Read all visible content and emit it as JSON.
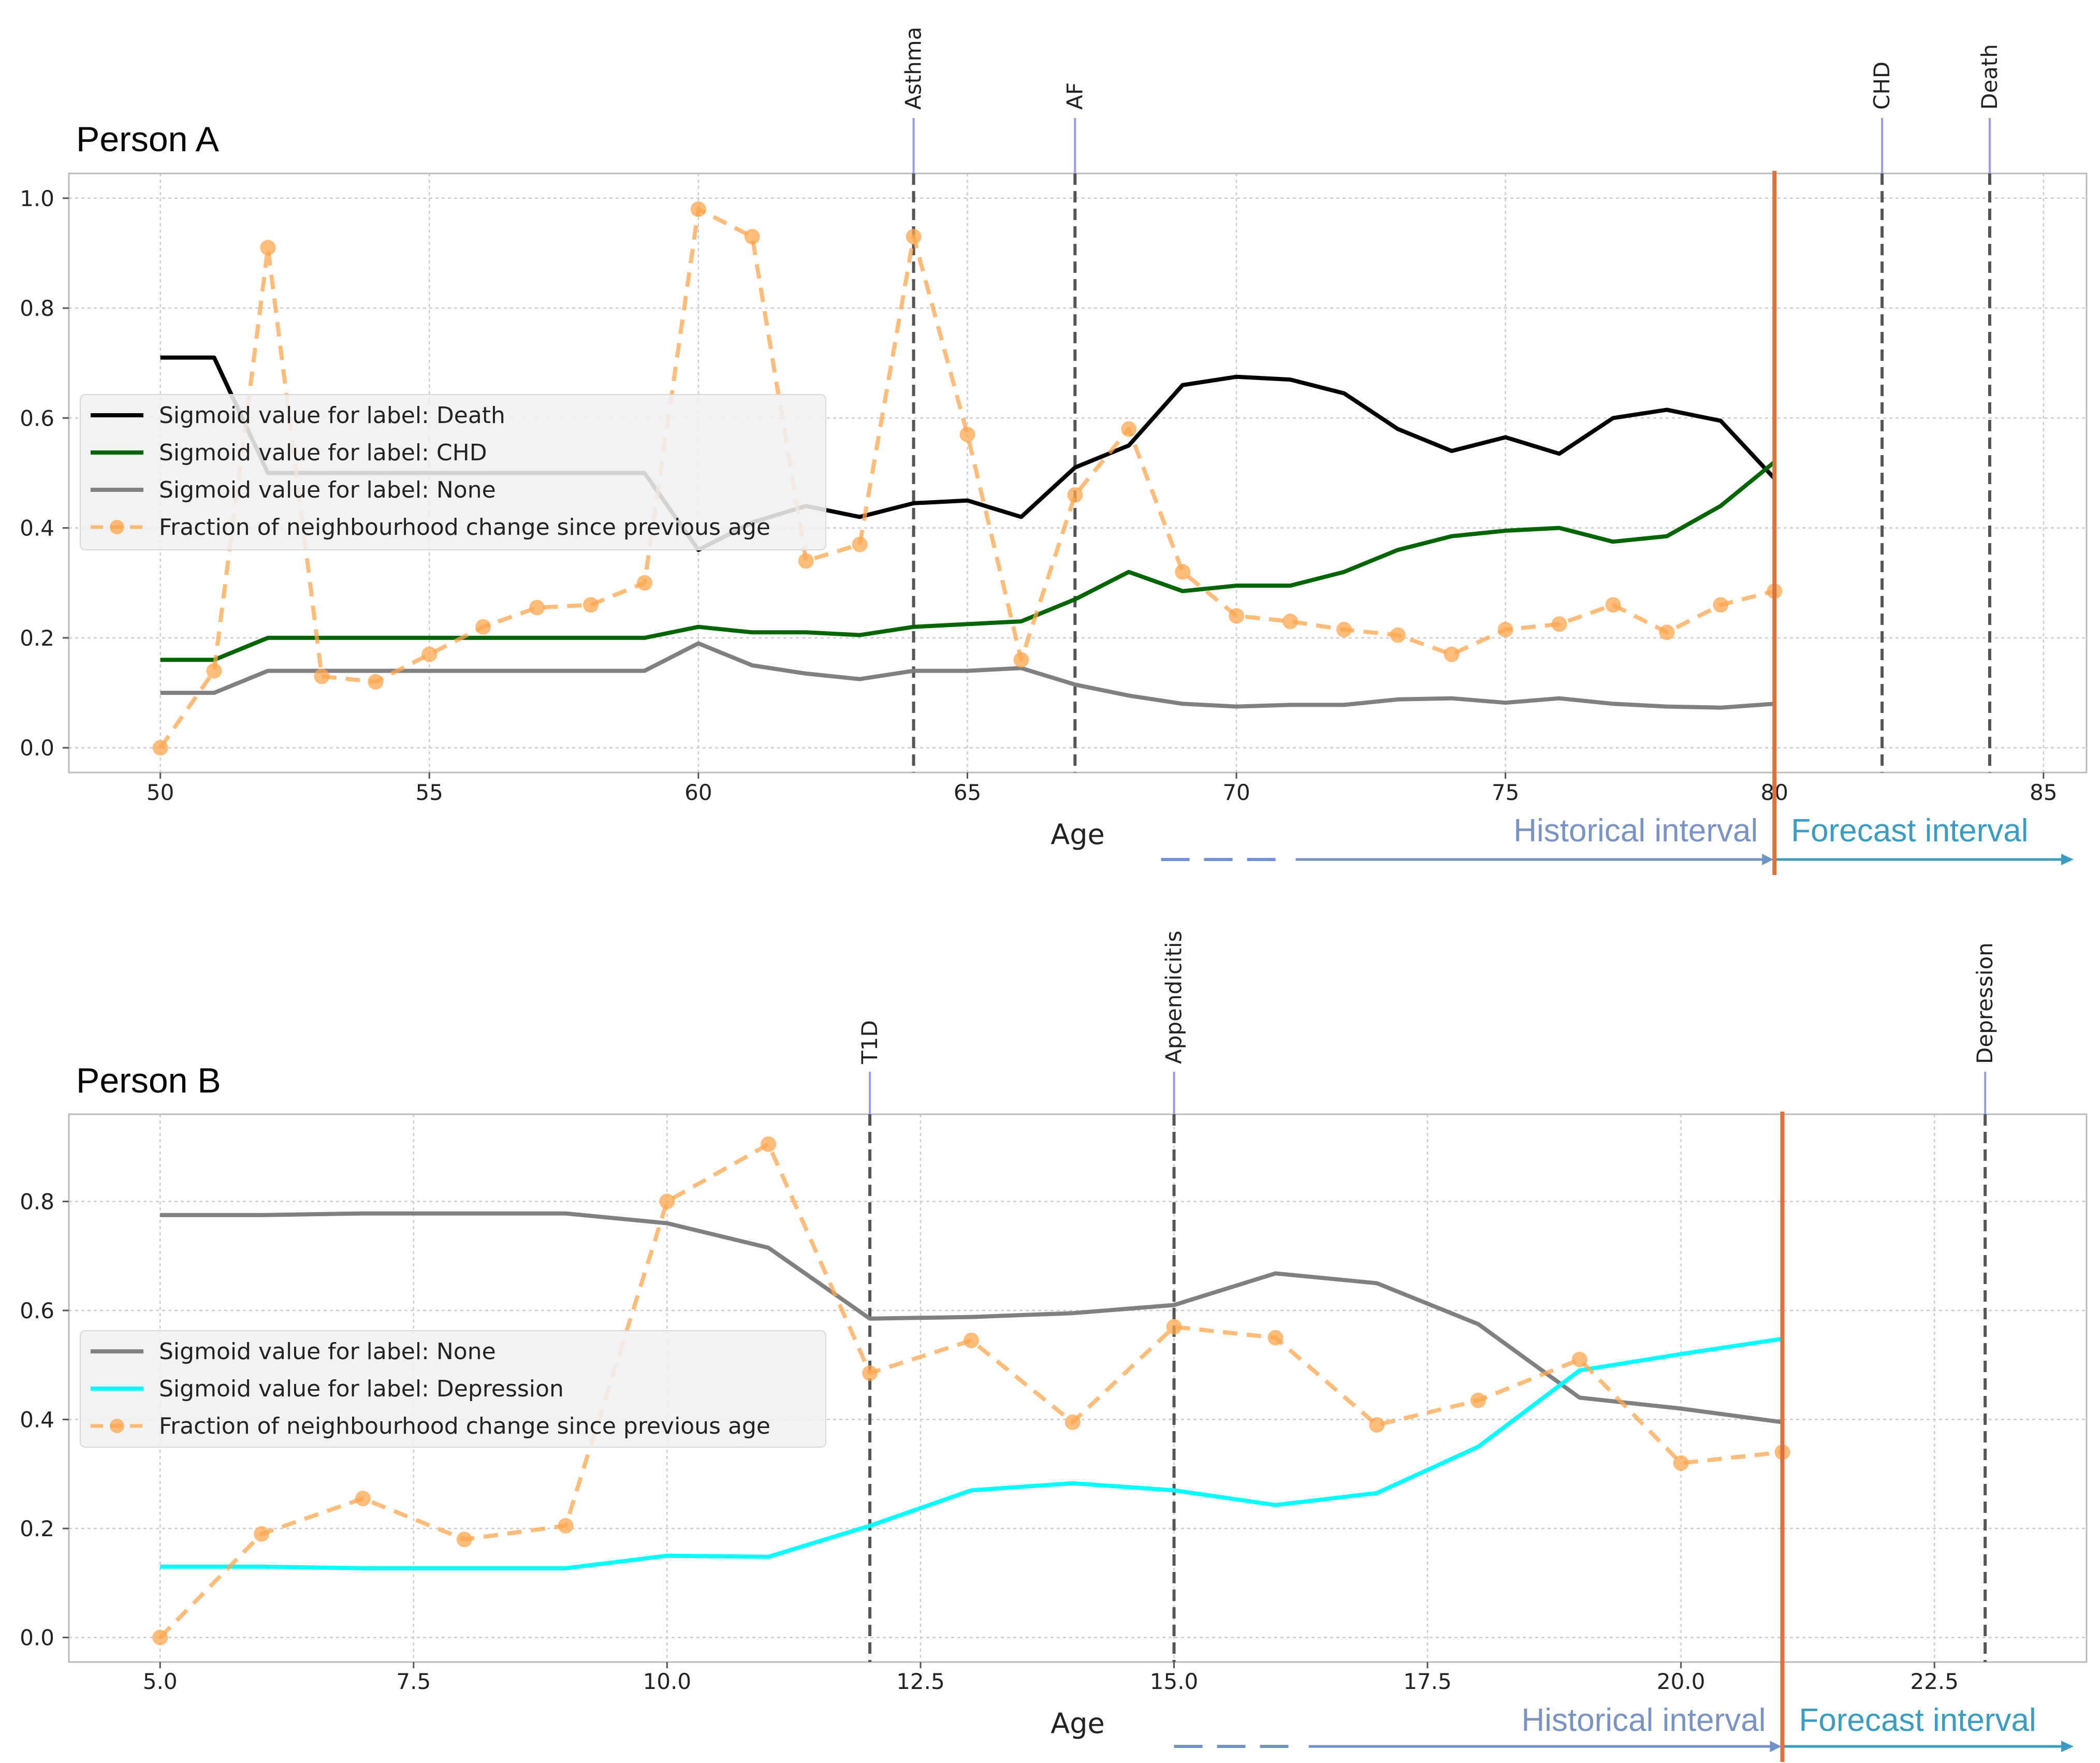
{
  "chart_data": [
    {
      "type": "line",
      "title": "Person A",
      "xlabel": "Age",
      "ylabel": "",
      "xlim": [
        48.3,
        85.8
      ],
      "ylim": [
        -0.045,
        1.045
      ],
      "xticks": [
        50,
        55,
        60,
        65,
        70,
        75,
        80,
        85
      ],
      "xtick_labels": [
        "50",
        "55",
        "60",
        "65",
        "70",
        "75",
        "80",
        "85"
      ],
      "yticks": [
        0.0,
        0.2,
        0.4,
        0.6,
        0.8,
        1.0
      ],
      "ytick_labels": [
        "0.0",
        "0.2",
        "0.4",
        "0.6",
        "0.8",
        "1.0"
      ],
      "grid": true,
      "legend_position": "center-left",
      "series": [
        {
          "name": "Sigmoid value for label: Death",
          "color": "#000000",
          "style": "solid",
          "x": [
            50,
            51,
            52,
            53,
            54,
            55,
            56,
            57,
            58,
            59,
            60,
            61,
            62,
            63,
            64,
            65,
            66,
            67,
            68,
            69,
            70,
            71,
            72,
            73,
            74,
            75,
            76,
            77,
            78,
            79,
            80
          ],
          "y": [
            0.71,
            0.71,
            0.5,
            0.5,
            0.5,
            0.5,
            0.5,
            0.5,
            0.5,
            0.5,
            0.36,
            0.41,
            0.44,
            0.42,
            0.445,
            0.45,
            0.42,
            0.51,
            0.55,
            0.66,
            0.675,
            0.67,
            0.645,
            0.58,
            0.54,
            0.565,
            0.535,
            0.6,
            0.615,
            0.595,
            0.49
          ]
        },
        {
          "name": "Sigmoid value for label: CHD",
          "color": "#006400",
          "style": "solid",
          "x": [
            50,
            51,
            52,
            53,
            54,
            55,
            56,
            57,
            58,
            59,
            60,
            61,
            62,
            63,
            64,
            65,
            66,
            67,
            68,
            69,
            70,
            71,
            72,
            73,
            74,
            75,
            76,
            77,
            78,
            79,
            80
          ],
          "y": [
            0.16,
            0.16,
            0.2,
            0.2,
            0.2,
            0.2,
            0.2,
            0.2,
            0.2,
            0.2,
            0.22,
            0.21,
            0.21,
            0.205,
            0.22,
            0.225,
            0.23,
            0.27,
            0.32,
            0.285,
            0.295,
            0.295,
            0.32,
            0.36,
            0.385,
            0.395,
            0.4,
            0.375,
            0.385,
            0.44,
            0.52
          ]
        },
        {
          "name": "Sigmoid value for label: None",
          "color": "#808080",
          "style": "solid",
          "x": [
            50,
            51,
            52,
            53,
            54,
            55,
            56,
            57,
            58,
            59,
            60,
            61,
            62,
            63,
            64,
            65,
            66,
            67,
            68,
            69,
            70,
            71,
            72,
            73,
            74,
            75,
            76,
            77,
            78,
            79,
            80
          ],
          "y": [
            0.1,
            0.1,
            0.14,
            0.14,
            0.14,
            0.14,
            0.14,
            0.14,
            0.14,
            0.14,
            0.19,
            0.15,
            0.135,
            0.125,
            0.14,
            0.14,
            0.145,
            0.115,
            0.095,
            0.08,
            0.075,
            0.078,
            0.078,
            0.088,
            0.09,
            0.082,
            0.09,
            0.08,
            0.075,
            0.073,
            0.08
          ]
        },
        {
          "name": "Fraction of neighbourhood change since previous age",
          "color": "#FFA64D",
          "style": "dashed-markers",
          "x": [
            50,
            51,
            52,
            53,
            54,
            55,
            56,
            57,
            58,
            59,
            60,
            61,
            62,
            63,
            64,
            65,
            66,
            67,
            68,
            69,
            70,
            71,
            72,
            73,
            74,
            75,
            76,
            77,
            78,
            79,
            80
          ],
          "y": [
            0.0,
            0.14,
            0.91,
            0.13,
            0.12,
            0.17,
            0.22,
            0.255,
            0.26,
            0.3,
            0.98,
            0.93,
            0.34,
            0.37,
            0.93,
            0.57,
            0.16,
            0.46,
            0.58,
            0.32,
            0.24,
            0.23,
            0.215,
            0.205,
            0.17,
            0.215,
            0.225,
            0.26,
            0.21,
            0.26,
            0.285
          ]
        }
      ],
      "events": [
        {
          "label": "Asthma",
          "x": 64
        },
        {
          "label": "AF",
          "x": 67
        },
        {
          "label": "CHD",
          "x": 82
        },
        {
          "label": "Death",
          "x": 84
        }
      ],
      "cutoff_x": 80,
      "interval_dashed_start_x": 68.6,
      "intervals": {
        "historical": "Historical interval",
        "forecast": "Forecast interval"
      }
    },
    {
      "type": "line",
      "title": "Person B",
      "xlabel": "Age",
      "ylabel": "",
      "xlim": [
        4.1,
        24.0
      ],
      "ylim": [
        -0.045,
        0.96
      ],
      "xticks": [
        5.0,
        7.5,
        10.0,
        12.5,
        15.0,
        17.5,
        20.0,
        22.5
      ],
      "xtick_labels": [
        "5.0",
        "7.5",
        "10.0",
        "12.5",
        "15.0",
        "17.5",
        "20.0",
        "22.5"
      ],
      "yticks": [
        0.0,
        0.2,
        0.4,
        0.6,
        0.8
      ],
      "ytick_labels": [
        "0.0",
        "0.2",
        "0.4",
        "0.6",
        "0.8"
      ],
      "grid": true,
      "legend_position": "center-left",
      "series": [
        {
          "name": "Sigmoid value for label: None",
          "color": "#808080",
          "style": "solid",
          "x": [
            5,
            6,
            7,
            8,
            9,
            10,
            11,
            12,
            13,
            14,
            15,
            16,
            17,
            18,
            19,
            20,
            21
          ],
          "y": [
            0.775,
            0.775,
            0.778,
            0.778,
            0.778,
            0.76,
            0.715,
            0.585,
            0.588,
            0.595,
            0.61,
            0.668,
            0.65,
            0.575,
            0.44,
            0.42,
            0.395
          ]
        },
        {
          "name": "Sigmoid value for label: Depression",
          "color": "#00FFFF",
          "style": "solid",
          "x": [
            5,
            6,
            7,
            8,
            9,
            10,
            11,
            12,
            13,
            14,
            15,
            16,
            17,
            18,
            19,
            20,
            21
          ],
          "y": [
            0.13,
            0.13,
            0.127,
            0.127,
            0.127,
            0.15,
            0.148,
            0.205,
            0.27,
            0.283,
            0.27,
            0.243,
            0.265,
            0.35,
            0.49,
            0.52,
            0.548
          ]
        },
        {
          "name": "Fraction of neighbourhood change since previous age",
          "color": "#FFA64D",
          "style": "dashed-markers",
          "x": [
            5,
            6,
            7,
            8,
            9,
            10,
            11,
            12,
            13,
            14,
            15,
            16,
            17,
            18,
            19,
            20,
            21
          ],
          "y": [
            0.0,
            0.19,
            0.255,
            0.18,
            0.205,
            0.8,
            0.905,
            0.485,
            0.545,
            0.395,
            0.57,
            0.55,
            0.39,
            0.435,
            0.51,
            0.32,
            0.34
          ]
        }
      ],
      "events": [
        {
          "label": "T1D",
          "x": 12
        },
        {
          "label": "Appendicitis",
          "x": 15
        },
        {
          "label": "Depression",
          "x": 23
        }
      ],
      "cutoff_x": 21,
      "interval_dashed_start_x": 15,
      "intervals": {
        "historical": "Historical interval",
        "forecast": "Forecast interval"
      }
    }
  ],
  "colors": {
    "cutoff_line": "#E2703A",
    "event_line": "#555555",
    "event_tick": "#9999EE",
    "historical_text": "#7B93C4",
    "forecast_text": "#3A9CC0",
    "historical_arrow": "#7092C6",
    "forecast_arrow": "#3A9CC0",
    "legend_bg": "#F0F0F0",
    "grid": "#CCCCCC"
  }
}
